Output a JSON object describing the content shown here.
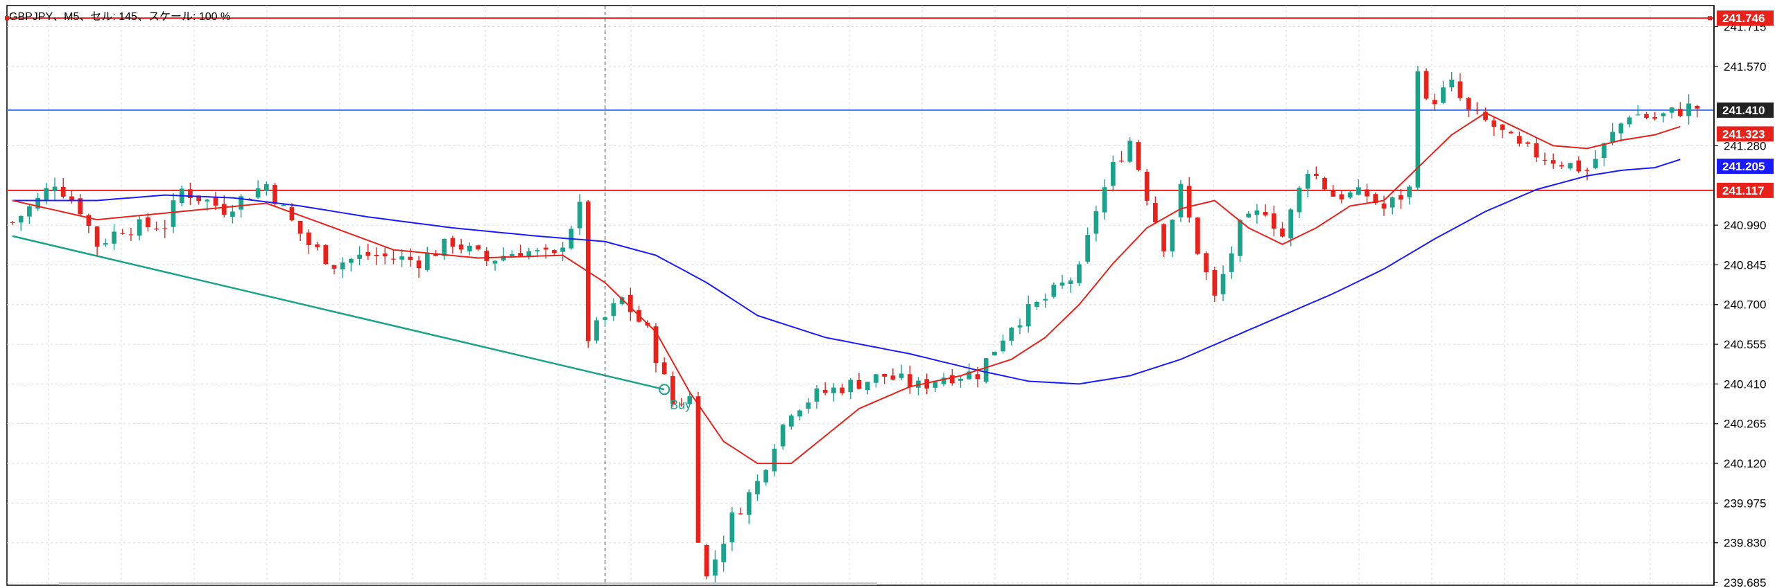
{
  "window": {
    "symbol_info": "GBPJPY、M5、セル: 145、スケール: 100 %"
  },
  "colors": {
    "background": "#ffffff",
    "grid": "#d9d9d9",
    "axis": "#000000",
    "candle_up": "#1aa38a",
    "candle_down": "#e8221b",
    "ma_fast": "#e8221b",
    "ma_slow": "#1a1aff",
    "hline_red": "#e8221b",
    "hline_blue": "#4a7bf7",
    "trendline": "#1aa38a",
    "crosshair": "#555555",
    "price_dark": "#222222"
  },
  "axis": {
    "ticks": [
      "241.715",
      "241.570",
      "241.280",
      "240.990",
      "240.845",
      "240.700",
      "240.555",
      "240.410",
      "240.265",
      "240.120",
      "239.975",
      "239.830",
      "239.685"
    ],
    "tick_values": [
      241.715,
      241.57,
      241.28,
      240.99,
      240.845,
      240.7,
      240.555,
      240.41,
      240.265,
      240.12,
      239.975,
      239.83,
      239.685
    ],
    "ylim": [
      239.675,
      241.792
    ]
  },
  "price_labels": [
    {
      "text": "241.746",
      "value": 241.746,
      "bg": "#e8221b",
      "fg": "#ffffff"
    },
    {
      "text": "241.410",
      "value": 241.41,
      "bg": "#222222",
      "fg": "#ffffff"
    },
    {
      "text": "241.323",
      "value": 241.323,
      "bg": "#e8221b",
      "fg": "#ffffff"
    },
    {
      "text": "241.205",
      "value": 241.205,
      "bg": "#1a1aff",
      "fg": "#ffffff"
    },
    {
      "text": "241.117",
      "value": 241.117,
      "bg": "#e8221b",
      "fg": "#ffffff"
    }
  ],
  "horizontal_lines": [
    {
      "name": "take-profit-line",
      "value": 241.746,
      "color": "#e8221b"
    },
    {
      "name": "current-price-line",
      "value": 241.41,
      "color": "#4a7bf7"
    },
    {
      "name": "resistance-line",
      "value": 241.117,
      "color": "#e8221b"
    }
  ],
  "trade": {
    "marker_label": "Buy",
    "entry_price": 240.39,
    "entry_bar": 77
  },
  "chart_data": {
    "type": "candlestick",
    "symbol": "GBPJPY",
    "timeframe": "M5",
    "bar_count": 200,
    "ylim": [
      239.675,
      241.792
    ],
    "close_path": [
      [
        0,
        241.0
      ],
      [
        3,
        241.08
      ],
      [
        5,
        241.15
      ],
      [
        8,
        241.05
      ],
      [
        10,
        240.92
      ],
      [
        13,
        240.98
      ],
      [
        18,
        240.99
      ],
      [
        20,
        241.12
      ],
      [
        25,
        241.05
      ],
      [
        30,
        241.14
      ],
      [
        33,
        241.0
      ],
      [
        35,
        240.92
      ],
      [
        38,
        240.85
      ],
      [
        42,
        240.88
      ],
      [
        48,
        240.86
      ],
      [
        52,
        240.93
      ],
      [
        56,
        240.86
      ],
      [
        60,
        240.9
      ],
      [
        64,
        240.87
      ],
      [
        67,
        241.05
      ],
      [
        68,
        240.58
      ],
      [
        72,
        240.72
      ],
      [
        75,
        240.6
      ],
      [
        78,
        240.34
      ],
      [
        80,
        240.36
      ],
      [
        81,
        239.86
      ],
      [
        82,
        239.7
      ],
      [
        85,
        239.92
      ],
      [
        88,
        240.05
      ],
      [
        90,
        240.2
      ],
      [
        92,
        240.32
      ],
      [
        95,
        240.37
      ],
      [
        98,
        240.4
      ],
      [
        103,
        240.44
      ],
      [
        107,
        240.4
      ],
      [
        110,
        240.44
      ],
      [
        114,
        240.45
      ],
      [
        118,
        240.63
      ],
      [
        122,
        240.72
      ],
      [
        126,
        240.82
      ],
      [
        128,
        241.05
      ],
      [
        130,
        241.2
      ],
      [
        132,
        241.3
      ],
      [
        134,
        241.1
      ],
      [
        136,
        240.92
      ],
      [
        138,
        241.12
      ],
      [
        140,
        240.9
      ],
      [
        142,
        240.72
      ],
      [
        145,
        240.98
      ],
      [
        148,
        241.05
      ],
      [
        150,
        240.95
      ],
      [
        153,
        241.2
      ],
      [
        156,
        241.1
      ],
      [
        160,
        241.1
      ],
      [
        162,
        241.05
      ],
      [
        165,
        241.12
      ],
      [
        166,
        241.58
      ],
      [
        167,
        241.43
      ],
      [
        170,
        241.5
      ],
      [
        172,
        241.4
      ],
      [
        175,
        241.35
      ],
      [
        178,
        241.27
      ],
      [
        182,
        241.23
      ],
      [
        186,
        241.19
      ],
      [
        189,
        241.32
      ],
      [
        191,
        241.4
      ],
      [
        194,
        241.38
      ],
      [
        198,
        241.42
      ]
    ],
    "ma_fast": [
      [
        0,
        241.08
      ],
      [
        10,
        241.01
      ],
      [
        20,
        241.04
      ],
      [
        30,
        241.07
      ],
      [
        38,
        240.98
      ],
      [
        45,
        240.9
      ],
      [
        55,
        240.87
      ],
      [
        65,
        240.88
      ],
      [
        70,
        240.78
      ],
      [
        76,
        240.6
      ],
      [
        80,
        240.38
      ],
      [
        84,
        240.2
      ],
      [
        88,
        240.12
      ],
      [
        92,
        240.12
      ],
      [
        96,
        240.22
      ],
      [
        100,
        240.32
      ],
      [
        106,
        240.4
      ],
      [
        112,
        240.44
      ],
      [
        118,
        240.5
      ],
      [
        122,
        240.58
      ],
      [
        126,
        240.7
      ],
      [
        130,
        240.85
      ],
      [
        134,
        240.98
      ],
      [
        138,
        241.05
      ],
      [
        142,
        241.08
      ],
      [
        146,
        240.98
      ],
      [
        150,
        240.92
      ],
      [
        154,
        240.98
      ],
      [
        158,
        241.06
      ],
      [
        162,
        241.08
      ],
      [
        166,
        241.2
      ],
      [
        170,
        241.32
      ],
      [
        174,
        241.4
      ],
      [
        178,
        241.34
      ],
      [
        182,
        241.28
      ],
      [
        186,
        241.27
      ],
      [
        190,
        241.3
      ],
      [
        194,
        241.32
      ],
      [
        197,
        241.35
      ]
    ],
    "ma_slow": [
      [
        0,
        241.08
      ],
      [
        10,
        241.08
      ],
      [
        18,
        241.1
      ],
      [
        26,
        241.09
      ],
      [
        34,
        241.06
      ],
      [
        42,
        241.02
      ],
      [
        52,
        240.98
      ],
      [
        62,
        240.95
      ],
      [
        70,
        240.93
      ],
      [
        76,
        240.88
      ],
      [
        82,
        240.78
      ],
      [
        88,
        240.66
      ],
      [
        96,
        240.58
      ],
      [
        106,
        240.52
      ],
      [
        114,
        240.46
      ],
      [
        120,
        240.42
      ],
      [
        126,
        240.41
      ],
      [
        132,
        240.44
      ],
      [
        138,
        240.5
      ],
      [
        144,
        240.58
      ],
      [
        150,
        240.66
      ],
      [
        156,
        240.74
      ],
      [
        162,
        240.83
      ],
      [
        168,
        240.94
      ],
      [
        174,
        241.04
      ],
      [
        180,
        241.12
      ],
      [
        186,
        241.17
      ],
      [
        190,
        241.19
      ],
      [
        194,
        241.2
      ],
      [
        197,
        241.23
      ]
    ],
    "trendline": {
      "from": [
        0,
        240.95
      ],
      "to": [
        77,
        240.39
      ]
    },
    "crosshair_bar": 70,
    "price_lines": [
      241.746,
      241.41,
      241.117
    ]
  }
}
